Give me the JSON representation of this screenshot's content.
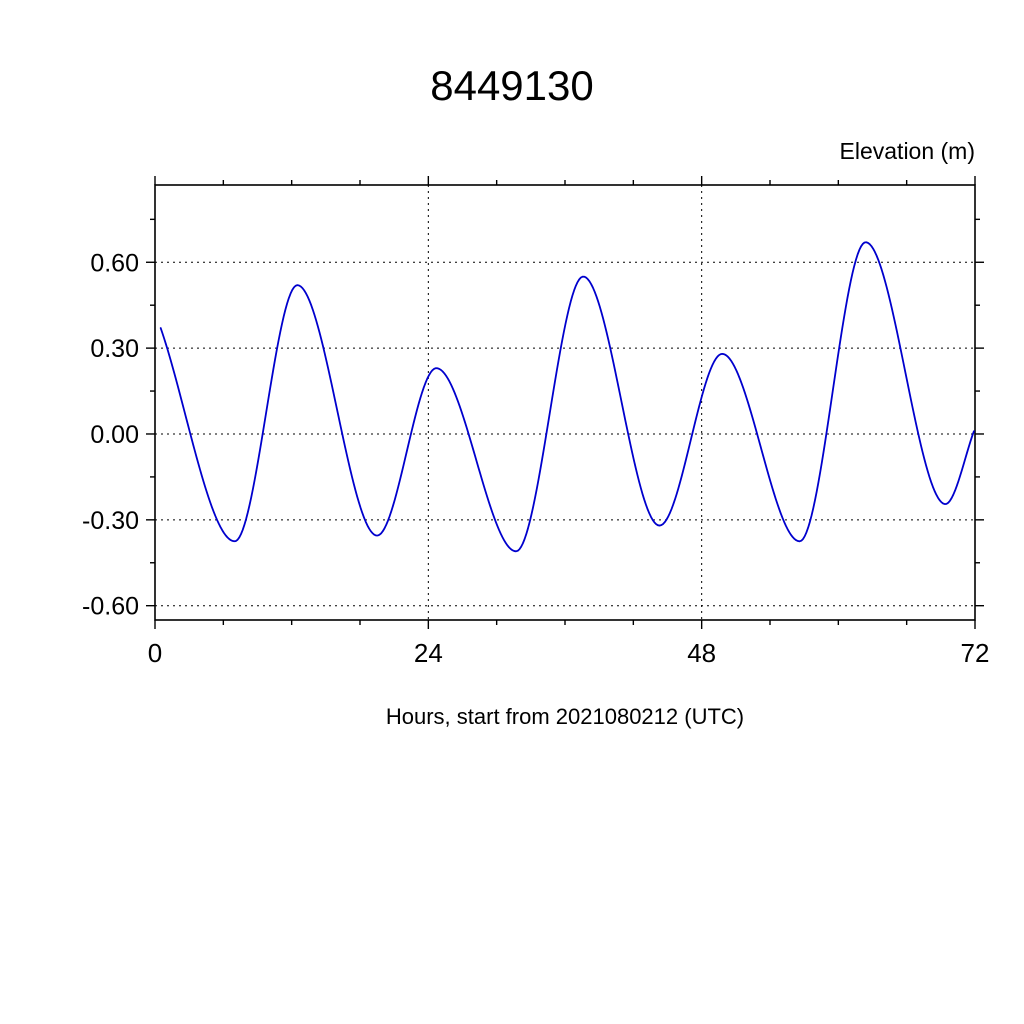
{
  "chart_data": {
    "type": "line",
    "title": "8449130",
    "ylabel": "Elevation (m)",
    "xlabel": "Hours, start from 2021080212 (UTC)",
    "xlim": [
      0,
      72
    ],
    "ylim": [
      -0.65,
      0.87
    ],
    "xticks": {
      "major": [
        0,
        24,
        48,
        72
      ],
      "labels": [
        "0",
        "24",
        "48",
        "72"
      ],
      "minor_step": 6
    },
    "yticks": {
      "major": [
        0.6,
        0.3,
        0.0,
        -0.3,
        -0.6
      ],
      "labels": [
        "0.60",
        "0.30",
        "0.00",
        "-0.30",
        "-0.60"
      ],
      "minor_step": 0.15
    },
    "grid": {
      "x": [
        24,
        48
      ],
      "y": [
        0.6,
        0.3,
        0.0,
        -0.3,
        -0.6
      ],
      "style": "dotted"
    },
    "legend": "none",
    "line_color": "#0000cd",
    "frame_color": "#000000",
    "series": [
      {
        "name": "tidal-elevation",
        "points": [
          [
            0.5,
            0.37
          ],
          [
            7.0,
            -0.375
          ],
          [
            12.5,
            0.52
          ],
          [
            19.5,
            -0.355
          ],
          [
            24.7,
            0.23
          ],
          [
            31.7,
            -0.41
          ],
          [
            37.6,
            0.55
          ],
          [
            44.3,
            -0.32
          ],
          [
            49.8,
            0.28
          ],
          [
            56.6,
            -0.375
          ],
          [
            62.4,
            0.67
          ],
          [
            69.4,
            -0.245
          ],
          [
            72.0,
            0.02
          ]
        ]
      }
    ]
  }
}
